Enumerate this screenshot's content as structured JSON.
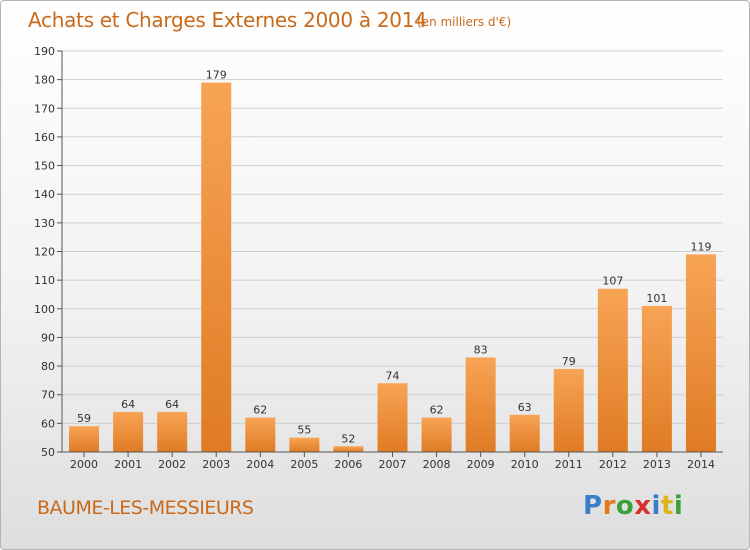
{
  "header": {
    "title": "Achats et Charges Externes 2000 à 2014",
    "subtitle": "(en milliers d'€)"
  },
  "footer": {
    "commune": "BAUME-LES-MESSIEURS",
    "logo_letters": [
      "P",
      "r",
      "o",
      "x",
      "i",
      "t",
      "i"
    ],
    "logo_colors": [
      "#3a7dc9",
      "#e07b1a",
      "#3aa13a",
      "#d93030",
      "#3a7dc9",
      "#e0b21a",
      "#3aa13a"
    ]
  },
  "colors": {
    "bar_light": "#f7a455",
    "bar_dark": "#e07b24",
    "title": "#c96a1b",
    "grid": "#cfcfcf"
  },
  "chart_data": {
    "type": "bar",
    "title": "Achats et Charges Externes 2000 à 2014",
    "subtitle": "(en milliers d'€)",
    "xlabel": "",
    "ylabel": "",
    "categories": [
      "2000",
      "2001",
      "2002",
      "2003",
      "2004",
      "2005",
      "2006",
      "2007",
      "2008",
      "2009",
      "2010",
      "2011",
      "2012",
      "2013",
      "2014"
    ],
    "values": [
      59,
      64,
      64,
      179,
      62,
      55,
      52,
      74,
      62,
      83,
      63,
      79,
      107,
      101,
      119
    ],
    "ylim": [
      50,
      190
    ],
    "yticks": [
      50,
      60,
      70,
      80,
      90,
      100,
      110,
      120,
      130,
      140,
      150,
      160,
      170,
      180,
      190
    ],
    "grid": true,
    "data_labels": true
  }
}
